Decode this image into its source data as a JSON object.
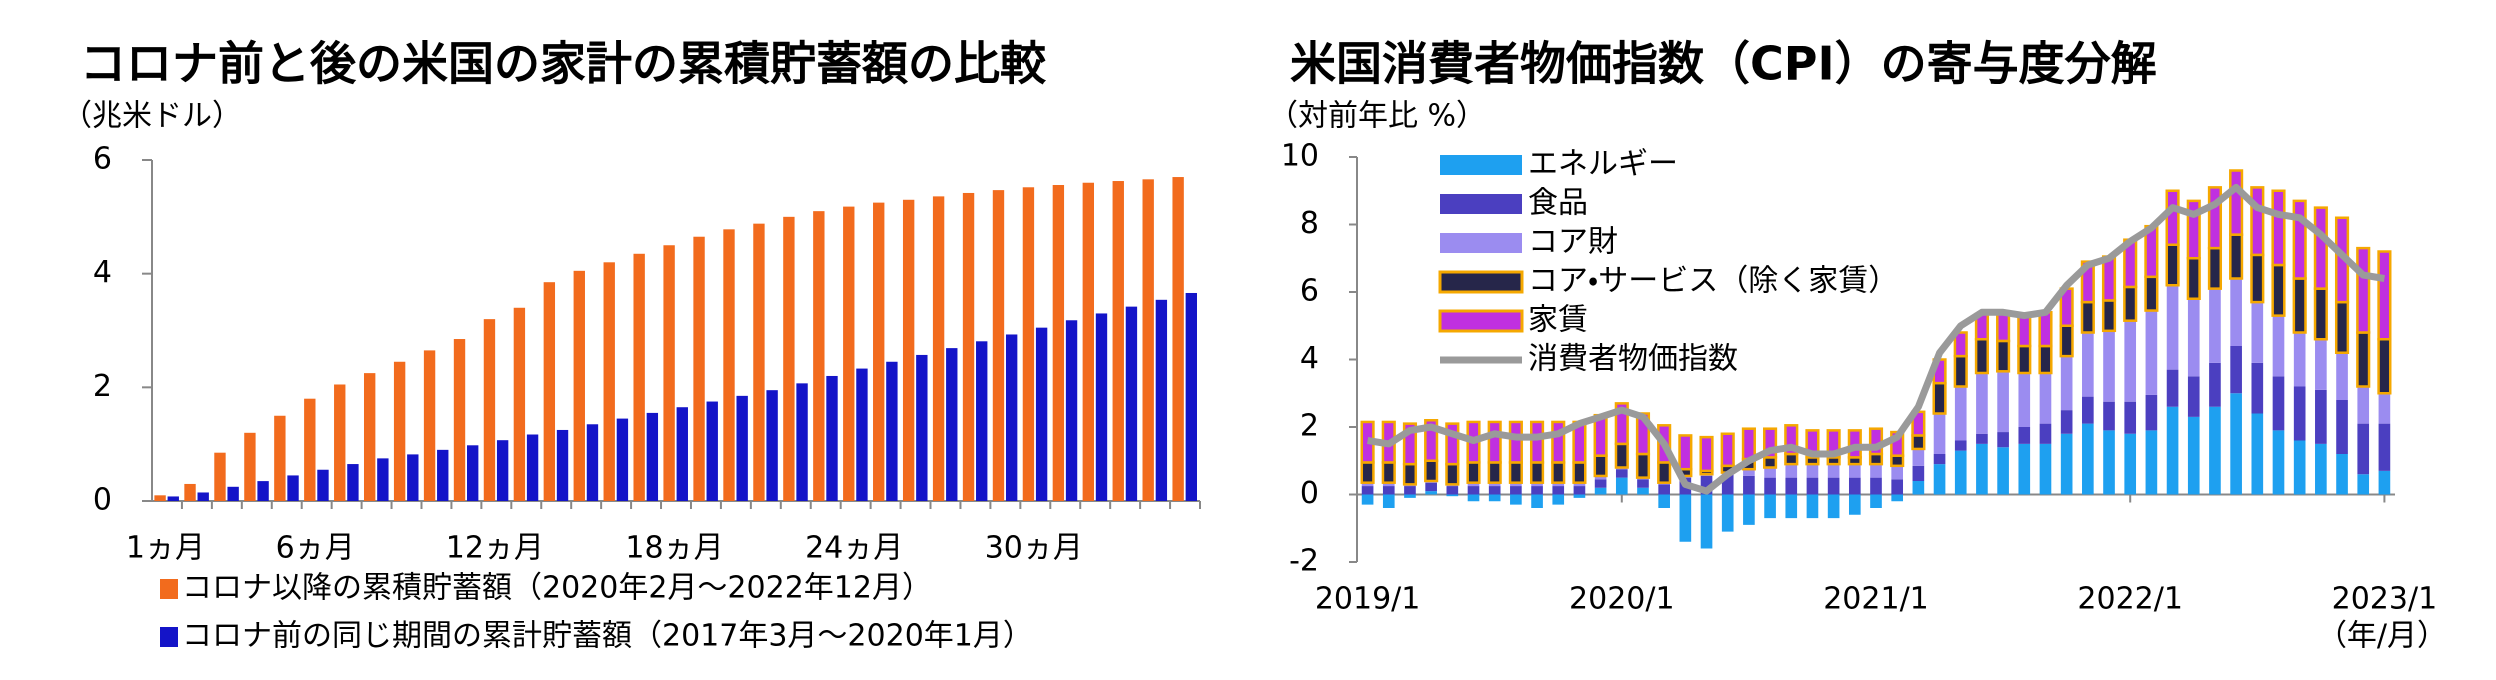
{
  "chart_data": [
    {
      "type": "bar",
      "title": "コロナ前と後の米国の家計の累積貯蓄額の比較",
      "unit_label": "（兆米ドル）",
      "categories": [
        "1ヵ月",
        null,
        null,
        null,
        null,
        "6ヵ月",
        null,
        null,
        null,
        null,
        null,
        "12ヵ月",
        null,
        null,
        null,
        null,
        null,
        "18ヵ月",
        null,
        null,
        null,
        null,
        null,
        "24ヵ月",
        null,
        null,
        null,
        null,
        null,
        "30ヵ月",
        null,
        null,
        null,
        null,
        null
      ],
      "series": [
        {
          "name": "コロナ以降の累積貯蓄額（2020年2月～2022年12月）",
          "color": "#f26b1d",
          "values": [
            0.1,
            0.3,
            0.85,
            1.2,
            1.5,
            1.8,
            2.05,
            2.25,
            2.45,
            2.65,
            2.85,
            3.2,
            3.4,
            3.85,
            4.05,
            4.2,
            4.35,
            4.5,
            4.65,
            4.78,
            4.88,
            5.0,
            5.1,
            5.18,
            5.25,
            5.3,
            5.36,
            5.42,
            5.47,
            5.52,
            5.56,
            5.6,
            5.63,
            5.66,
            5.7
          ]
        },
        {
          "name": "コロナ前の同じ期間の累計貯蓄額（2017年3月～2020年1月）",
          "color": "#1414c8",
          "values": [
            0.08,
            0.15,
            0.25,
            0.35,
            0.45,
            0.55,
            0.65,
            0.75,
            0.82,
            0.9,
            0.98,
            1.07,
            1.17,
            1.25,
            1.35,
            1.45,
            1.55,
            1.65,
            1.75,
            1.85,
            1.95,
            2.07,
            2.2,
            2.33,
            2.45,
            2.57,
            2.69,
            2.81,
            2.93,
            3.05,
            3.18,
            3.3,
            3.42,
            3.54,
            3.66
          ]
        }
      ],
      "ylim": [
        0,
        6
      ],
      "yticks": [
        0,
        2,
        4,
        6
      ]
    },
    {
      "type": "stacked-bar-line",
      "title": "米国消費者物価指数（CPI）の寄与度分解",
      "unit_label": "（対前年比 %）",
      "x_unit_label": "（年/月）",
      "categories": [
        "2019/1",
        null,
        null,
        null,
        null,
        null,
        null,
        null,
        null,
        null,
        null,
        null,
        "2020/1",
        null,
        null,
        null,
        null,
        null,
        null,
        null,
        null,
        null,
        null,
        null,
        "2021/1",
        null,
        null,
        null,
        null,
        null,
        null,
        null,
        null,
        null,
        null,
        null,
        "2022/1",
        null,
        null,
        null,
        null,
        null,
        null,
        null,
        null,
        null,
        null,
        null,
        "2023/1"
      ],
      "series": [
        {
          "name": "エネルギー",
          "color": "#1ea0f0",
          "values": [
            -0.3,
            -0.4,
            -0.1,
            0.1,
            -0.05,
            -0.2,
            -0.2,
            -0.3,
            -0.4,
            -0.3,
            -0.1,
            0.2,
            0.5,
            0.2,
            -0.4,
            -1.4,
            -1.6,
            -1.1,
            -0.9,
            -0.7,
            -0.7,
            -0.7,
            -0.7,
            -0.6,
            -0.4,
            -0.2,
            0.4,
            0.9,
            1.3,
            1.5,
            1.4,
            1.5,
            1.5,
            1.8,
            2.1,
            1.9,
            1.8,
            1.9,
            2.6,
            2.3,
            2.6,
            3.0,
            2.4,
            1.9,
            1.6,
            1.5,
            1.2,
            0.6,
            0.7
          ]
        },
        {
          "name": "食品",
          "color": "#4b3fc0",
          "values": [
            0.25,
            0.25,
            0.25,
            0.25,
            0.25,
            0.25,
            0.25,
            0.25,
            0.25,
            0.25,
            0.25,
            0.25,
            0.25,
            0.25,
            0.3,
            0.5,
            0.55,
            0.6,
            0.55,
            0.5,
            0.5,
            0.5,
            0.5,
            0.5,
            0.5,
            0.45,
            0.45,
            0.3,
            0.3,
            0.3,
            0.45,
            0.5,
            0.6,
            0.7,
            0.8,
            0.85,
            0.95,
            1.05,
            1.1,
            1.2,
            1.3,
            1.4,
            1.5,
            1.6,
            1.6,
            1.6,
            1.6,
            1.5,
            1.4
          ]
        },
        {
          "name": "コア財",
          "color": "#9b8cf0",
          "values": [
            0.1,
            0.1,
            0.05,
            0.05,
            0.05,
            0.1,
            0.1,
            0.1,
            0.1,
            0.1,
            0.1,
            0.1,
            0.05,
            0.05,
            0.05,
            0.05,
            0.05,
            0.05,
            0.2,
            0.3,
            0.4,
            0.4,
            0.4,
            0.4,
            0.4,
            0.4,
            0.5,
            1.2,
            1.6,
            1.8,
            1.8,
            1.6,
            1.5,
            1.6,
            1.9,
            2.1,
            2.4,
            2.5,
            2.5,
            2.3,
            2.2,
            2.0,
            1.8,
            1.8,
            1.6,
            1.5,
            1.4,
            1.1,
            0.9
          ]
        },
        {
          "name": "コア・サービス（除く家賃）",
          "color": "#26264a",
          "border": "#f5a800",
          "values": [
            0.6,
            0.6,
            0.6,
            0.6,
            0.6,
            0.6,
            0.6,
            0.6,
            0.6,
            0.6,
            0.6,
            0.6,
            0.7,
            0.7,
            0.6,
            0.2,
            0.1,
            0.2,
            0.3,
            0.3,
            0.3,
            0.2,
            0.2,
            0.2,
            0.3,
            0.3,
            0.4,
            0.9,
            0.9,
            1.0,
            0.9,
            0.8,
            0.8,
            0.9,
            0.9,
            0.9,
            1.0,
            1.0,
            1.2,
            1.2,
            1.2,
            1.3,
            1.4,
            1.5,
            1.6,
            1.5,
            1.5,
            1.6,
            1.6
          ]
        },
        {
          "name": "家賃",
          "color": "#c030e0",
          "border": "#f5a800",
          "values": [
            1.2,
            1.2,
            1.2,
            1.2,
            1.2,
            1.2,
            1.2,
            1.2,
            1.2,
            1.2,
            1.2,
            1.2,
            1.2,
            1.2,
            1.1,
            1.0,
            1.0,
            0.95,
            0.9,
            0.85,
            0.85,
            0.8,
            0.8,
            0.8,
            0.75,
            0.7,
            0.7,
            0.7,
            0.7,
            0.75,
            0.8,
            0.9,
            1.0,
            1.1,
            1.2,
            1.3,
            1.4,
            1.5,
            1.6,
            1.7,
            1.8,
            1.9,
            2.0,
            2.2,
            2.3,
            2.4,
            2.5,
            2.5,
            2.6
          ]
        }
      ],
      "line": {
        "name": "消費者物価指数",
        "color": "#9a9a9a",
        "values": [
          1.6,
          1.5,
          1.9,
          2.0,
          1.8,
          1.6,
          1.8,
          1.7,
          1.7,
          1.8,
          2.1,
          2.3,
          2.5,
          2.3,
          1.5,
          0.3,
          0.1,
          0.6,
          1.0,
          1.3,
          1.4,
          1.2,
          1.2,
          1.4,
          1.4,
          1.7,
          2.6,
          4.2,
          5.0,
          5.4,
          5.4,
          5.3,
          5.4,
          6.2,
          6.8,
          7.0,
          7.5,
          7.9,
          8.5,
          8.3,
          8.6,
          9.1,
          8.5,
          8.3,
          8.2,
          7.7,
          7.1,
          6.5,
          6.4
        ]
      },
      "ylim": [
        -2,
        10
      ],
      "yticks": [
        -2,
        0,
        2,
        4,
        6,
        8,
        10
      ]
    }
  ]
}
